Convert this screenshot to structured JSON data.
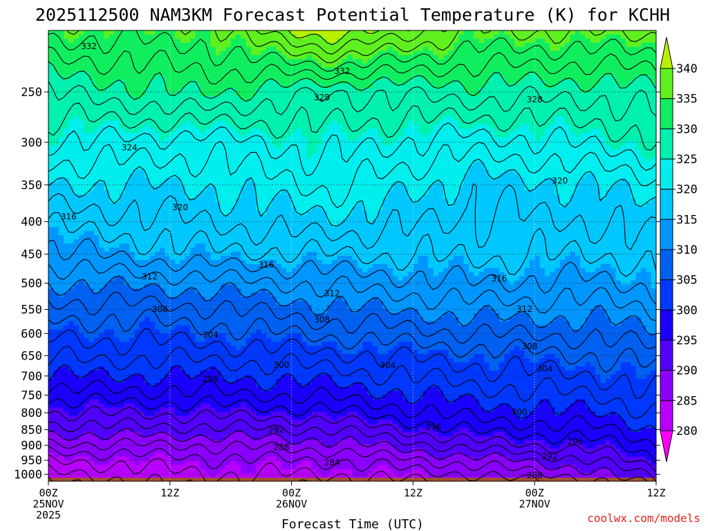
{
  "chart_data": {
    "type": "contour-filled",
    "title": "2025112500 NAM3KM Forecast Potential Temperature (K) for KCHH",
    "xlabel": "Forecast Time (UTC)",
    "ylabel": "",
    "credit": "coolwx.com/models",
    "x_range_hours": [
      0,
      60
    ],
    "x_ticks": [
      {
        "hour": 0,
        "lines": [
          "00Z",
          "25NOV",
          "2025"
        ]
      },
      {
        "hour": 12,
        "lines": [
          "12Z"
        ]
      },
      {
        "hour": 24,
        "lines": [
          "00Z",
          "26NOV"
        ]
      },
      {
        "hour": 36,
        "lines": [
          "12Z"
        ]
      },
      {
        "hour": 48,
        "lines": [
          "00Z",
          "27NOV"
        ]
      },
      {
        "hour": 60,
        "lines": [
          "12Z"
        ]
      }
    ],
    "y_axis": {
      "scale": "log-pressure",
      "units": "hPa",
      "range": [
        1025,
        200
      ],
      "ticks": [
        250,
        300,
        350,
        400,
        450,
        500,
        550,
        600,
        650,
        700,
        750,
        800,
        850,
        900,
        950,
        1000
      ]
    },
    "colorbar": {
      "levels": [
        280,
        285,
        290,
        295,
        300,
        305,
        310,
        315,
        320,
        325,
        330,
        335,
        340
      ],
      "colors": [
        "#ff00ff",
        "#b700ff",
        "#8a00ff",
        "#5200ff",
        "#1a00ff",
        "#0038ff",
        "#0060f0",
        "#0096ff",
        "#00c8ff",
        "#00eeee",
        "#00f0b0",
        "#10ee60",
        "#60f020",
        "#b8f000"
      ]
    },
    "contour_interval_K": 2,
    "sample_profiles": [
      {
        "hour": 0,
        "pressure_hPa": [
          1000,
          950,
          900,
          850,
          800,
          750,
          700,
          650,
          600,
          550,
          500,
          450,
          400,
          350,
          300,
          250,
          220
        ],
        "theta_K": [
          281.5,
          284.0,
          287.5,
          291.0,
          294.0,
          297.0,
          300.0,
          302.5,
          304.5,
          307.0,
          310.0,
          313.5,
          316.5,
          320.0,
          324.0,
          328.0,
          332.0
        ]
      },
      {
        "hour": 15,
        "pressure_hPa": [
          1000,
          950,
          900,
          850,
          800,
          750,
          700,
          650,
          600,
          550,
          500,
          450,
          400,
          350,
          300,
          250,
          220
        ],
        "theta_K": [
          284.0,
          285.5,
          288.0,
          291.5,
          294.5,
          297.5,
          300.0,
          302.5,
          305.0,
          307.5,
          311.0,
          315.5,
          318.0,
          320.0,
          323.0,
          330.5,
          333.0
        ]
      },
      {
        "hour": 28,
        "pressure_hPa": [
          1000,
          950,
          900,
          850,
          800,
          750,
          700,
          650,
          600,
          550,
          500,
          450,
          400,
          350,
          300,
          250,
          220
        ],
        "theta_K": [
          284.0,
          286.0,
          289.0,
          292.0,
          295.5,
          298.5,
          301.0,
          303.5,
          306.5,
          309.5,
          312.5,
          316.0,
          319.5,
          322.5,
          325.0,
          328.0,
          336.0
        ]
      },
      {
        "hour": 42,
        "pressure_hPa": [
          1000,
          950,
          900,
          850,
          800,
          750,
          700,
          650,
          600,
          550,
          500,
          450,
          400,
          350,
          300,
          250,
          220
        ],
        "theta_K": [
          286.0,
          289.0,
          293.0,
          296.5,
          299.0,
          301.0,
          303.0,
          305.0,
          308.0,
          311.0,
          314.0,
          316.5,
          317.5,
          319.0,
          323.0,
          329.0,
          333.0
        ]
      },
      {
        "hour": 54,
        "pressure_hPa": [
          1000,
          950,
          900,
          850,
          800,
          750,
          700,
          650,
          600,
          550,
          500,
          450,
          400,
          350,
          300,
          250,
          220
        ],
        "theta_K": [
          289.0,
          292.0,
          295.0,
          297.5,
          300.0,
          302.0,
          304.0,
          306.0,
          308.5,
          311.0,
          313.5,
          316.0,
          318.0,
          320.0,
          324.5,
          328.5,
          333.0
        ]
      },
      {
        "hour": 60,
        "pressure_hPa": [
          1000,
          950,
          900,
          850,
          800,
          750,
          700,
          650,
          600,
          550,
          500,
          450,
          400,
          350,
          300,
          250,
          220
        ],
        "theta_K": [
          293.0,
          296.0,
          298.0,
          300.0,
          302.0,
          303.5,
          305.0,
          307.0,
          309.5,
          312.0,
          314.5,
          317.0,
          319.0,
          321.5,
          325.5,
          329.5,
          333.5
        ]
      }
    ],
    "contour_labels": [
      {
        "value": "332",
        "hour": 4,
        "pressure_hPa": 212
      },
      {
        "value": "332",
        "hour": 29,
        "pressure_hPa": 232
      },
      {
        "value": "328",
        "hour": 27,
        "pressure_hPa": 255
      },
      {
        "value": "328",
        "hour": 48,
        "pressure_hPa": 257
      },
      {
        "value": "324",
        "hour": 8,
        "pressure_hPa": 306
      },
      {
        "value": "320",
        "hour": 13,
        "pressure_hPa": 380
      },
      {
        "value": "320",
        "hour": 50.5,
        "pressure_hPa": 345
      },
      {
        "value": "316",
        "hour": 2,
        "pressure_hPa": 393
      },
      {
        "value": "316",
        "hour": 21.5,
        "pressure_hPa": 468
      },
      {
        "value": "316",
        "hour": 44.5,
        "pressure_hPa": 492
      },
      {
        "value": "312",
        "hour": 10,
        "pressure_hPa": 488
      },
      {
        "value": "312",
        "hour": 28,
        "pressure_hPa": 519
      },
      {
        "value": "312",
        "hour": 47,
        "pressure_hPa": 549
      },
      {
        "value": "308",
        "hour": 11,
        "pressure_hPa": 550
      },
      {
        "value": "308",
        "hour": 27,
        "pressure_hPa": 571
      },
      {
        "value": "308",
        "hour": 47.5,
        "pressure_hPa": 629
      },
      {
        "value": "304",
        "hour": 16,
        "pressure_hPa": 603
      },
      {
        "value": "304",
        "hour": 33.5,
        "pressure_hPa": 674
      },
      {
        "value": "304",
        "hour": 49,
        "pressure_hPa": 682
      },
      {
        "value": "300",
        "hour": 23,
        "pressure_hPa": 673
      },
      {
        "value": "300",
        "hour": 46.5,
        "pressure_hPa": 798
      },
      {
        "value": "296",
        "hour": 16,
        "pressure_hPa": 708
      },
      {
        "value": "296",
        "hour": 38,
        "pressure_hPa": 842
      },
      {
        "value": "296",
        "hour": 52,
        "pressure_hPa": 887
      },
      {
        "value": "292",
        "hour": 22.5,
        "pressure_hPa": 850
      },
      {
        "value": "292",
        "hour": 49.5,
        "pressure_hPa": 937
      },
      {
        "value": "288",
        "hour": 23,
        "pressure_hPa": 906
      },
      {
        "value": "288",
        "hour": 48,
        "pressure_hPa": 1004
      },
      {
        "value": "284",
        "hour": 28,
        "pressure_hPa": 958
      }
    ]
  }
}
